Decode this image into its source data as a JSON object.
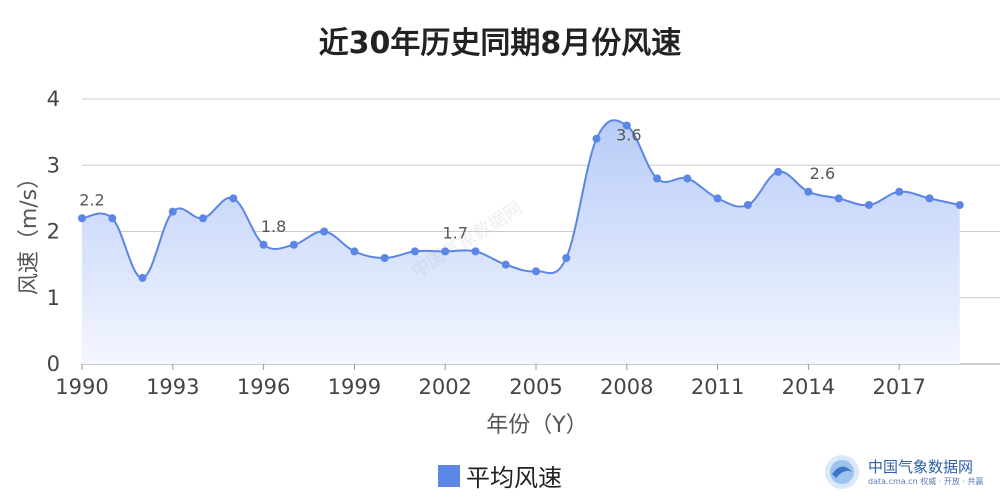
{
  "chart_data": {
    "type": "area",
    "title": "近30年历史同期8月份风速",
    "xlabel": "年份（Y）",
    "ylabel": "风速（m/s）",
    "ylim": [
      0,
      4
    ],
    "yticks": [
      "0",
      "1",
      "2",
      "3",
      "4"
    ],
    "xticks": [
      "1990",
      "1993",
      "1996",
      "1999",
      "2002",
      "2005",
      "2008",
      "2011",
      "2014",
      "2017"
    ],
    "grid": true,
    "legend_position": "bottom",
    "colors": {
      "line": "#5b86e5",
      "fill_top": "#b8ccf8",
      "fill_bottom": "#f3f6fe"
    },
    "series": [
      {
        "name": "平均风速",
        "x": [
          1990,
          1991,
          1992,
          1993,
          1994,
          1995,
          1996,
          1997,
          1998,
          1999,
          2000,
          2001,
          2002,
          2003,
          2004,
          2005,
          2006,
          2007,
          2008,
          2009,
          2010,
          2011,
          2012,
          2013,
          2014,
          2015,
          2016,
          2017,
          2018,
          2019
        ],
        "values": [
          2.2,
          2.2,
          1.3,
          2.3,
          2.2,
          2.5,
          1.8,
          1.8,
          2.0,
          1.7,
          1.6,
          1.7,
          1.7,
          1.7,
          1.5,
          1.4,
          1.6,
          3.4,
          3.6,
          2.8,
          2.8,
          2.5,
          2.4,
          2.9,
          2.6,
          2.5,
          2.4,
          2.6,
          2.5,
          2.4
        ]
      }
    ],
    "data_labels": [
      {
        "year": 1990,
        "text": "2.2"
      },
      {
        "year": 1996,
        "text": "1.8"
      },
      {
        "year": 2002,
        "text": "1.7"
      },
      {
        "year": 2008,
        "text": "3.6"
      },
      {
        "year": 2014,
        "text": "2.6"
      }
    ]
  },
  "watermark": "中国气象数据网",
  "logo": {
    "name": "中国气象数据网",
    "url_line": "data.cma.cn 权威 · 开放 · 共赢"
  }
}
